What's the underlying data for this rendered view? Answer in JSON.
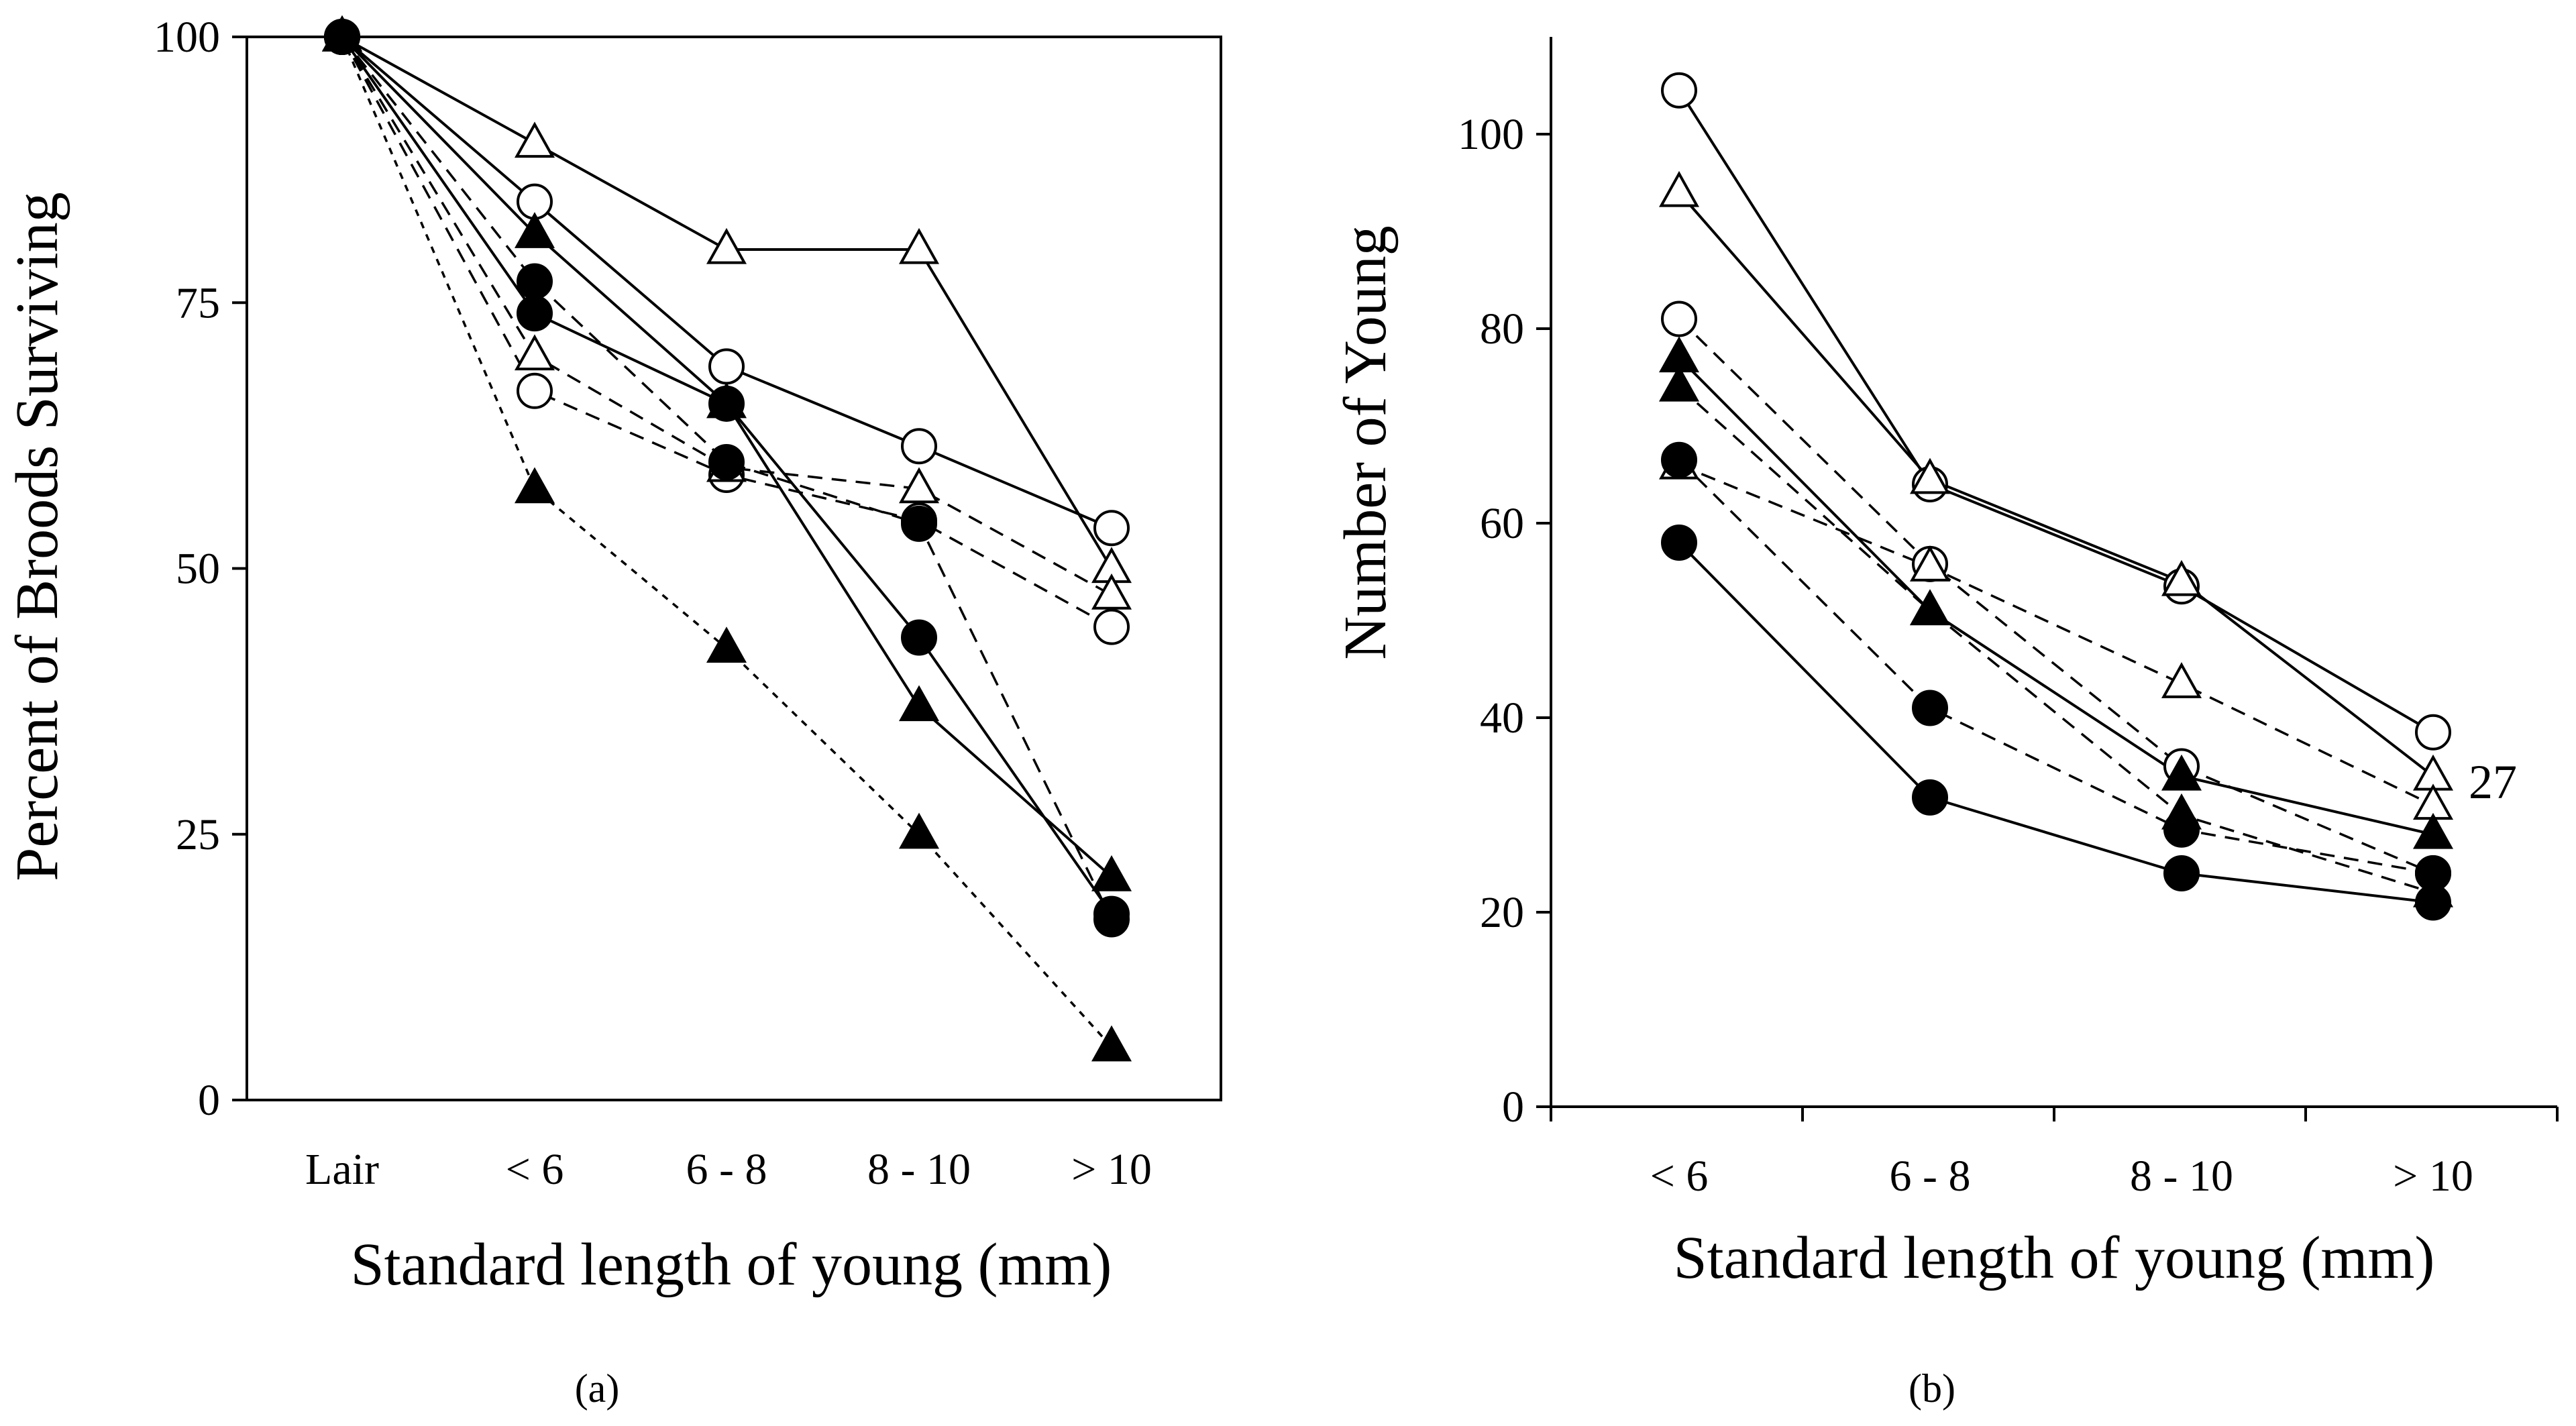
{
  "chart_data": [
    {
      "id": "a",
      "type": "line",
      "panel_label": "(a)",
      "xlabel": "Standard length of young (mm)",
      "ylabel": "Percent of Broods Surviving",
      "categories": [
        "Lair",
        "< 6",
        "6 - 8",
        "8 - 10",
        "> 10"
      ],
      "ylim": [
        0,
        100
      ],
      "yticks": [
        0,
        25,
        50,
        75,
        100
      ],
      "series": [
        {
          "name": "open circle, solid 1",
          "marker": "circle-open",
          "line": "solid",
          "values": [
            100,
            84.5,
            69,
            61.5,
            53.8
          ]
        },
        {
          "name": "open triangle, solid",
          "marker": "triangle-open",
          "line": "solid",
          "values": [
            100,
            90,
            80,
            80,
            50
          ]
        },
        {
          "name": "open circle, dashed",
          "marker": "circle-open",
          "line": "dashed",
          "values": [
            100,
            66.7,
            58.8,
            54.5,
            44.5
          ]
        },
        {
          "name": "open triangle, dashed",
          "marker": "triangle-open",
          "line": "dashed",
          "values": [
            100,
            70,
            59.5,
            57.5,
            47.5
          ]
        },
        {
          "name": "filled circle, solid 1",
          "marker": "circle-filled",
          "line": "solid",
          "values": [
            100,
            74,
            65.5,
            43.5,
            17.5
          ]
        },
        {
          "name": "filled triangle, solid",
          "marker": "triangle-filled",
          "line": "solid",
          "values": [
            100,
            81.5,
            65.5,
            37,
            21
          ]
        },
        {
          "name": "filled circle, dashed",
          "marker": "circle-filled",
          "line": "dashed",
          "values": [
            100,
            77,
            60,
            54.2,
            17
          ]
        },
        {
          "name": "filled triangle, dotted",
          "marker": "triangle-filled",
          "line": "dotted",
          "values": [
            100,
            57.5,
            42.5,
            25,
            5
          ]
        }
      ]
    },
    {
      "id": "b",
      "type": "line",
      "panel_label": "(b)",
      "xlabel": "Standard length of young (mm)",
      "ylabel": "Number of Young",
      "categories": [
        "< 6",
        "6 - 8",
        "8 - 10",
        "> 10"
      ],
      "ylim": [
        0,
        110
      ],
      "yticks": [
        0,
        20,
        40,
        60,
        80,
        100
      ],
      "annotation": "27",
      "series": [
        {
          "name": "open circle, solid",
          "marker": "circle-open",
          "line": "solid",
          "values": [
            104.5,
            64,
            53.5,
            38.5
          ]
        },
        {
          "name": "open triangle, solid",
          "marker": "triangle-open",
          "line": "solid",
          "values": [
            94,
            64.5,
            54,
            34
          ]
        },
        {
          "name": "open circle, dashed",
          "marker": "circle-open",
          "line": "dashed",
          "values": [
            81,
            55.8,
            35,
            24
          ]
        },
        {
          "name": "open triangle, dashed",
          "marker": "triangle-open",
          "line": "dashed",
          "values": [
            66,
            55.5,
            43.5,
            31
          ]
        },
        {
          "name": "filled triangle, solid",
          "marker": "triangle-filled",
          "line": "solid",
          "values": [
            77,
            51,
            34,
            28
          ]
        },
        {
          "name": "filled triangle, dashed",
          "marker": "triangle-filled",
          "line": "dashed",
          "values": [
            74,
            51,
            30,
            22
          ]
        },
        {
          "name": "filled circle, dashed",
          "marker": "circle-filled",
          "line": "dashed",
          "values": [
            66.5,
            41,
            28.5,
            24
          ]
        },
        {
          "name": "filled circle, solid",
          "marker": "circle-filled",
          "line": "solid",
          "values": [
            58,
            31.8,
            24,
            21
          ]
        }
      ]
    }
  ]
}
